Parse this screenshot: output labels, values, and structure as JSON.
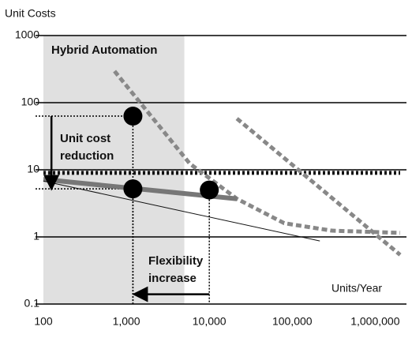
{
  "chart_data": {
    "type": "line",
    "ylabel": "Unit Costs",
    "xlabel": "Units/Year",
    "log_x": true,
    "log_y": true,
    "grid": true,
    "xlim": [
      100,
      2000000
    ],
    "ylim": [
      0.1,
      1000
    ],
    "xticks": [
      100,
      {
        "value": 1000,
        "label": "1,000"
      },
      {
        "value": 10000,
        "label": "10,000"
      },
      {
        "value": 100000,
        "label": "100,000"
      },
      {
        "value": 1000000,
        "label": "1,000,000"
      }
    ],
    "yticks": [
      1000,
      100,
      10,
      1,
      0.1
    ],
    "shaded_region": {
      "label": "Hybrid Automation",
      "x": [
        100,
        5000
      ],
      "color": "#e0e0e0"
    },
    "series": [
      {
        "color": "#111111",
        "style": "dotted",
        "x": [
          100,
          2000000
        ],
        "values": [
          9,
          9
        ]
      },
      {
        "color": "#888888",
        "style": "dashed",
        "x": [
          720,
          5800,
          21500,
          80000,
          300000,
          2000000
        ],
        "values": [
          295,
          12.4,
          3.7,
          1.6,
          1.24,
          1.15
        ]
      },
      {
        "color": "#888888",
        "style": "dashed",
        "x": [
          21500,
          2000000
        ],
        "values": [
          58,
          0.54
        ]
      },
      {
        "color": "#777777",
        "style": "thick",
        "x": [
          100,
          21500
        ],
        "values": [
          7.2,
          3.7
        ]
      },
      {
        "color": "#111111",
        "style": "thin",
        "x": [
          100,
          215000
        ],
        "values": [
          6.8,
          0.87
        ]
      }
    ],
    "points": {
      "color": "#000000",
      "x": [
        1200,
        1200,
        10000
      ],
      "values": [
        63,
        5.2,
        5
      ]
    },
    "annotations": [
      {
        "text": [
          "Unit cost",
          "reduction"
        ],
        "x": 125,
        "y_from": 63,
        "y_to": 5
      },
      {
        "text": [
          "Flexibility",
          "increase"
        ],
        "y": 0.14,
        "x_from": 10000,
        "x_to": 1200
      }
    ]
  }
}
